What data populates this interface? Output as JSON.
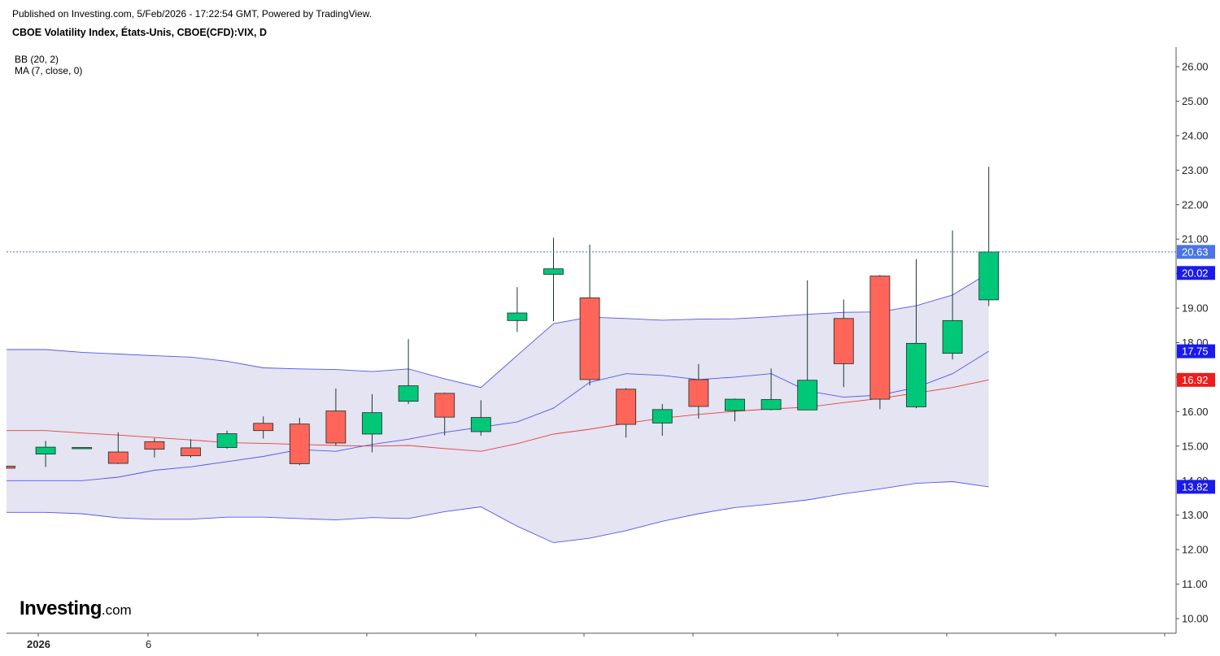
{
  "header": {
    "published": "Published on Investing.com, 5/Feb/2026 - 17:22:54 GMT, Powered by TradingView.",
    "symbol": "CBOE Volatility Index, États-Unis, CBOE(CFD):VIX, D"
  },
  "legend": {
    "bb": "BB (20, 2)",
    "ma": "MA (7, close, 0)"
  },
  "logo": {
    "main": "Investing",
    "suffix": ".com"
  },
  "chart_data": {
    "type": "candlestick",
    "ylim": [
      9.6,
      26.5
    ],
    "yticks": [
      "10.00",
      "11.00",
      "12.00",
      "13.00",
      "14.00",
      "15.00",
      "16.00",
      "17.00",
      "18.00",
      "19.00",
      "20.00",
      "21.00",
      "22.00",
      "23.00",
      "24.00",
      "25.00",
      "26.00"
    ],
    "xtick_labels": [
      "2026",
      "6"
    ],
    "last_price": "20.63",
    "price_labels": [
      {
        "text": "20.63",
        "value": 20.63,
        "color": "#4a74e8"
      },
      {
        "text": "20.02",
        "value": 20.02,
        "color": "#1a1aee"
      },
      {
        "text": "17.75",
        "value": 17.75,
        "color": "#1a1aee"
      },
      {
        "text": "16.92",
        "value": 16.92,
        "color": "#ee1c1c"
      },
      {
        "text": "13.82",
        "value": 13.82,
        "color": "#1a1aee"
      }
    ],
    "colors": {
      "up": "#00c878",
      "down": "#ff6659",
      "band_fill": "#e4e4f2",
      "band_line": "#5555ee",
      "ma_line": "#e84040"
    },
    "candles": [
      {
        "o": 14.42,
        "h": 14.42,
        "l": 14.36,
        "c": 14.36
      },
      {
        "o": 14.77,
        "h": 15.15,
        "l": 14.4,
        "c": 14.97
      },
      {
        "o": 14.95,
        "h": 14.97,
        "l": 14.94,
        "c": 14.96
      },
      {
        "o": 14.83,
        "h": 15.4,
        "l": 14.48,
        "c": 14.5
      },
      {
        "o": 15.13,
        "h": 15.23,
        "l": 14.67,
        "c": 14.91
      },
      {
        "o": 14.95,
        "h": 15.2,
        "l": 14.67,
        "c": 14.72
      },
      {
        "o": 14.96,
        "h": 15.45,
        "l": 14.92,
        "c": 15.36
      },
      {
        "o": 15.66,
        "h": 15.86,
        "l": 15.22,
        "c": 15.45
      },
      {
        "o": 15.64,
        "h": 15.82,
        "l": 14.45,
        "c": 14.49
      },
      {
        "o": 16.02,
        "h": 16.67,
        "l": 15.02,
        "c": 15.09
      },
      {
        "o": 15.35,
        "h": 16.51,
        "l": 14.82,
        "c": 15.97
      },
      {
        "o": 16.3,
        "h": 18.1,
        "l": 16.22,
        "c": 16.75
      },
      {
        "o": 16.53,
        "h": 16.55,
        "l": 15.31,
        "c": 15.84
      },
      {
        "o": 15.42,
        "h": 16.33,
        "l": 15.3,
        "c": 15.83
      },
      {
        "o": 18.64,
        "h": 19.61,
        "l": 18.31,
        "c": 18.86
      },
      {
        "o": 19.98,
        "h": 21.04,
        "l": 18.62,
        "c": 20.14
      },
      {
        "o": 19.3,
        "h": 20.84,
        "l": 16.76,
        "c": 16.93
      },
      {
        "o": 16.65,
        "h": 16.68,
        "l": 15.25,
        "c": 15.63
      },
      {
        "o": 15.67,
        "h": 16.22,
        "l": 15.3,
        "c": 16.06
      },
      {
        "o": 16.93,
        "h": 17.38,
        "l": 15.8,
        "c": 16.15
      },
      {
        "o": 16.03,
        "h": 16.38,
        "l": 15.72,
        "c": 16.36
      },
      {
        "o": 16.06,
        "h": 17.25,
        "l": 16.04,
        "c": 16.35
      },
      {
        "o": 16.05,
        "h": 19.81,
        "l": 16.04,
        "c": 16.91
      },
      {
        "o": 18.7,
        "h": 19.25,
        "l": 16.71,
        "c": 17.39
      },
      {
        "o": 19.93,
        "h": 19.96,
        "l": 16.07,
        "c": 16.36
      },
      {
        "o": 16.14,
        "h": 20.42,
        "l": 16.1,
        "c": 17.98
      },
      {
        "o": 17.69,
        "h": 21.25,
        "l": 17.51,
        "c": 18.64
      },
      {
        "o": 19.24,
        "h": 23.1,
        "l": 19.06,
        "c": 20.63
      }
    ],
    "bb_upper": [
      17.8,
      17.72,
      17.67,
      17.62,
      17.58,
      17.46,
      17.27,
      17.24,
      17.22,
      17.16,
      17.24,
      16.95,
      16.7,
      17.63,
      18.55,
      18.74,
      18.7,
      18.65,
      18.68,
      18.69,
      18.75,
      18.82,
      18.88,
      18.89,
      19.07,
      19.38,
      20.02
    ],
    "bb_basis": [
      14.0,
      14.0,
      14.1,
      14.3,
      14.4,
      14.55,
      14.7,
      14.9,
      14.85,
      15.05,
      15.2,
      15.4,
      15.55,
      15.7,
      16.1,
      16.85,
      17.1,
      17.05,
      16.93,
      17.0,
      17.1,
      16.6,
      16.42,
      16.48,
      16.7,
      17.1,
      17.75
    ],
    "bb_lower": [
      13.08,
      13.04,
      12.92,
      12.88,
      12.88,
      12.94,
      12.94,
      12.9,
      12.86,
      12.93,
      12.9,
      13.1,
      13.24,
      12.68,
      12.2,
      12.33,
      12.55,
      12.82,
      13.04,
      13.22,
      13.32,
      13.44,
      13.62,
      13.76,
      13.92,
      13.97,
      13.82
    ],
    "ma": [
      15.45,
      15.38,
      15.32,
      15.25,
      15.18,
      15.1,
      15.08,
      15.05,
      15.02,
      15.0,
      15.02,
      14.93,
      14.85,
      15.07,
      15.35,
      15.49,
      15.66,
      15.81,
      15.92,
      16.01,
      16.08,
      16.13,
      16.26,
      16.38,
      16.54,
      16.7,
      16.92
    ]
  }
}
